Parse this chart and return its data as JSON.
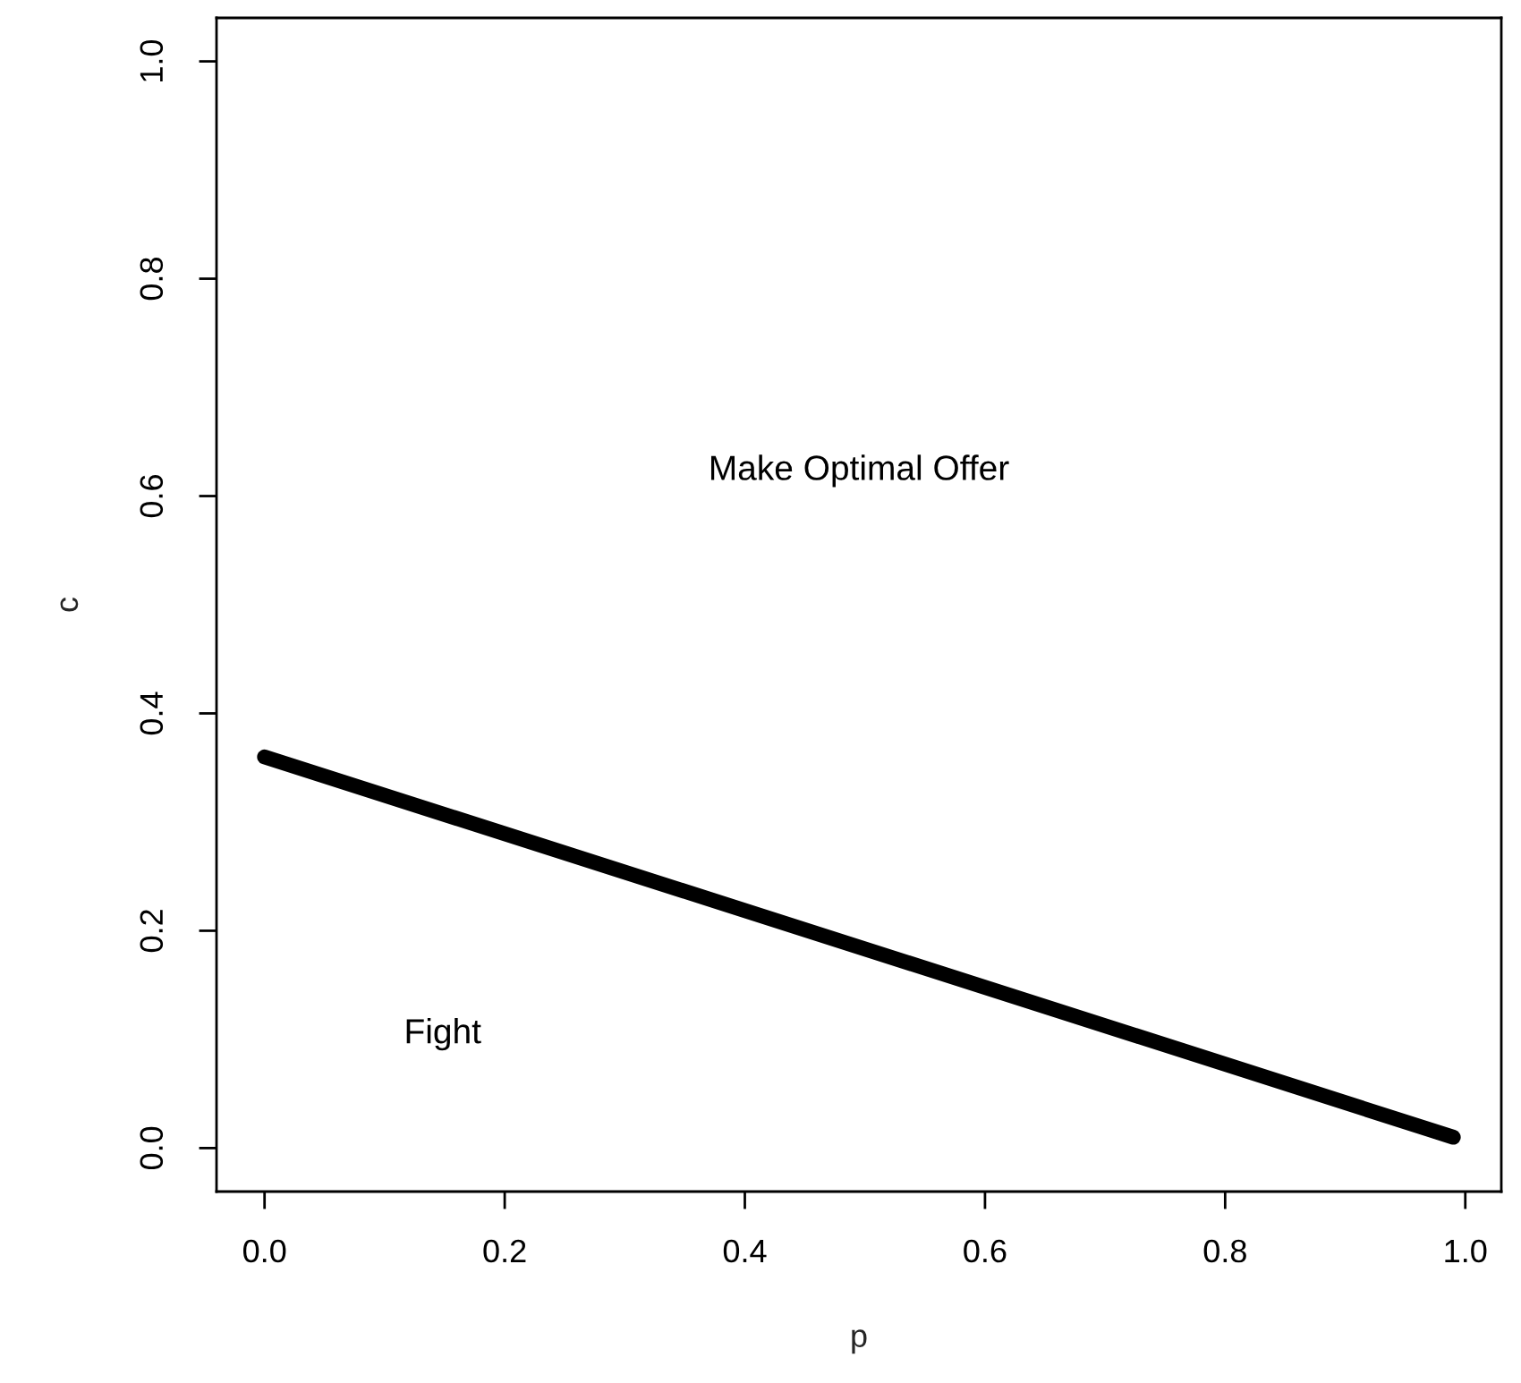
{
  "chart_data": {
    "type": "line",
    "xlabel": "p",
    "ylabel": "c",
    "x": [
      0.0,
      0.99
    ],
    "series": [
      {
        "color": "#000000",
        "values": [
          0.36,
          0.01
        ]
      }
    ],
    "xlim": [
      -0.04,
      1.03
    ],
    "ylim": [
      -0.04,
      1.04
    ],
    "xticks": [
      {
        "value": 0,
        "label": "0.0"
      },
      0.2,
      0.4,
      0.6,
      0.8,
      {
        "value": 1,
        "label": "1.0"
      }
    ],
    "yticks": [
      {
        "value": 0,
        "label": "0.0"
      },
      0.2,
      0.4,
      0.6,
      0.8,
      {
        "value": 1,
        "label": "1.0"
      }
    ],
    "grid": false,
    "legend": false,
    "line_style": "solid",
    "marker": "none",
    "annotations": [
      "Make Optimal Offer",
      "Fight"
    ]
  }
}
